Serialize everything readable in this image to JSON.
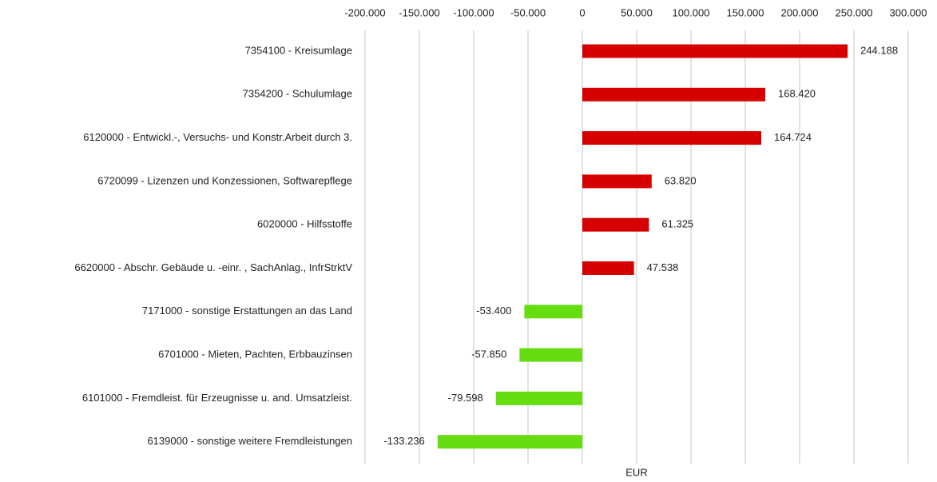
{
  "chart_data": {
    "type": "hbar",
    "categories": [
      "7354100 - Kreisumlage",
      "7354200 - Schulumlage",
      "6120000 - Entwickl.-, Versuchs- und Konstr.Arbeit durch 3.",
      "6720099 - Lizenzen und Konzessionen, Softwarepflege",
      "6020000 - Hilfsstoffe",
      "6620000 - Abschr. Gebäude u. -einr. , SachAnlag., InfrStrktV",
      "7171000 - sonstige Erstattungen an das Land",
      "6701000 - Mieten, Pachten, Erbbauzinsen",
      "6101000 - Fremdleist. für Erzeugnisse u. and. Umsatzleist.",
      "6139000 - sonstige weitere Fremdleistungen"
    ],
    "values": [
      244188,
      168420,
      164724,
      63820,
      61325,
      47538,
      -53400,
      -57850,
      -79598,
      -133236
    ],
    "value_labels": [
      "244.188",
      "168.420",
      "164.724",
      "63.820",
      "61.325",
      "47.538",
      "-53.400",
      "-57.850",
      "-79.598",
      "-133.236"
    ],
    "positive_color": "#d60000",
    "negative_color": "#66dd11",
    "xlabel": "EUR",
    "xlim": [
      -200000,
      300000
    ],
    "xticks": [
      {
        "value": -200000,
        "label": "-200.000"
      },
      {
        "value": -150000,
        "label": "-150.000"
      },
      {
        "value": -100000,
        "label": "-100.000"
      },
      {
        "value": -50000,
        "label": "-50.000"
      },
      0,
      {
        "value": 50000,
        "label": "50.000"
      },
      {
        "value": 100000,
        "label": "100.000"
      },
      {
        "value": 150000,
        "label": "150.000"
      },
      {
        "value": 200000,
        "label": "200.000"
      },
      {
        "value": 250000,
        "label": "250.000"
      },
      {
        "value": 300000,
        "label": "300.000"
      }
    ],
    "grid": true
  }
}
